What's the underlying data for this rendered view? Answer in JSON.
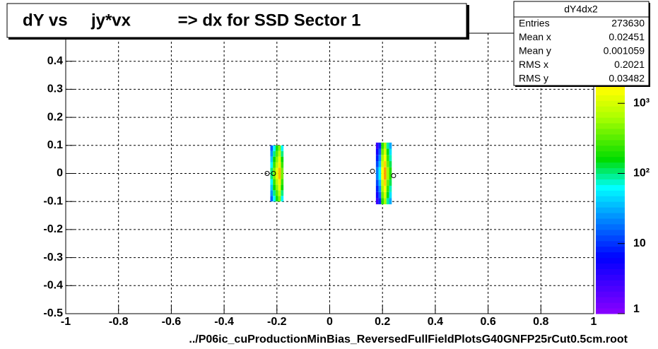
{
  "chart_data": {
    "type": "heatmap",
    "title": "dY vs     jy*vx          => dx for SSD Sector 1",
    "x_label": "../P06ic_cuProductionMinBias_ReversedFullFieldPlotsG40GNFP25rCut0.5cm.root",
    "xlim": [
      -1,
      1
    ],
    "xticks": [
      -1,
      -0.8,
      -0.6,
      -0.4,
      -0.2,
      0,
      0.2,
      0.4,
      0.6,
      0.8,
      1
    ],
    "ylim": [
      -0.5,
      0.5
    ],
    "yticks": [
      -0.5,
      -0.4,
      -0.3,
      -0.2,
      -0.1,
      0,
      0.1,
      0.2,
      0.3,
      0.4
    ],
    "zlim": [
      1,
      10000
    ],
    "zlog": true,
    "zticks": [
      1,
      10,
      {
        "value": 100,
        "label": "10²"
      },
      {
        "value": 1000,
        "label": "10³"
      }
    ],
    "grid": true,
    "clusters": [
      {
        "xbins": [
          -0.225,
          -0.215,
          -0.205,
          -0.195,
          -0.185,
          -0.175
        ],
        "ybins": [
          -0.1,
          -0.08,
          -0.06,
          -0.04,
          -0.02,
          0,
          0.02,
          0.04,
          0.06,
          0.08,
          0.1
        ],
        "z": [
          [
            15,
            60,
            180,
            450,
            60
          ],
          [
            25,
            100,
            300,
            750,
            100
          ],
          [
            40,
            160,
            480,
            1200,
            160
          ],
          [
            60,
            240,
            720,
            1800,
            240
          ],
          [
            100,
            400,
            1200,
            3000,
            400
          ],
          [
            100,
            400,
            1200,
            3000,
            400
          ],
          [
            60,
            240,
            720,
            1800,
            240
          ],
          [
            40,
            160,
            480,
            1200,
            160
          ],
          [
            25,
            100,
            300,
            750,
            100
          ],
          [
            15,
            60,
            180,
            450,
            60
          ]
        ]
      },
      {
        "xbins": [
          0.175,
          0.185,
          0.195,
          0.205,
          0.215,
          0.225,
          0.235
        ],
        "ybins": [
          -0.11,
          -0.088,
          -0.066,
          -0.044,
          -0.022,
          0,
          0.022,
          0.044,
          0.066,
          0.088,
          0.11
        ],
        "z": [
          [
            3,
            9,
            225,
            600,
            90,
            30
          ],
          [
            5,
            15,
            375,
            1000,
            150,
            50
          ],
          [
            8,
            24,
            600,
            1600,
            240,
            80
          ],
          [
            12,
            36,
            900,
            2400,
            360,
            120
          ],
          [
            20,
            60,
            1500,
            4000,
            600,
            200
          ],
          [
            20,
            60,
            1500,
            4000,
            600,
            200
          ],
          [
            12,
            36,
            900,
            2400,
            360,
            120
          ],
          [
            8,
            24,
            600,
            1600,
            240,
            80
          ],
          [
            5,
            15,
            375,
            1000,
            150,
            50
          ],
          [
            3,
            9,
            225,
            600,
            90,
            30
          ]
        ]
      }
    ],
    "markers": {
      "x": [
        -0.237,
        -0.213,
        0.162,
        0.242
      ],
      "y": [
        0,
        0,
        0.008,
        -0.008
      ]
    },
    "stats": {
      "title": "dY4dx2",
      "rows": [
        [
          "Entries",
          273630
        ],
        [
          "Mean x",
          0.02451
        ],
        [
          "Mean y",
          0.001059
        ],
        [
          "RMS x",
          0.2021
        ],
        [
          "RMS y",
          0.03482
        ]
      ]
    }
  }
}
